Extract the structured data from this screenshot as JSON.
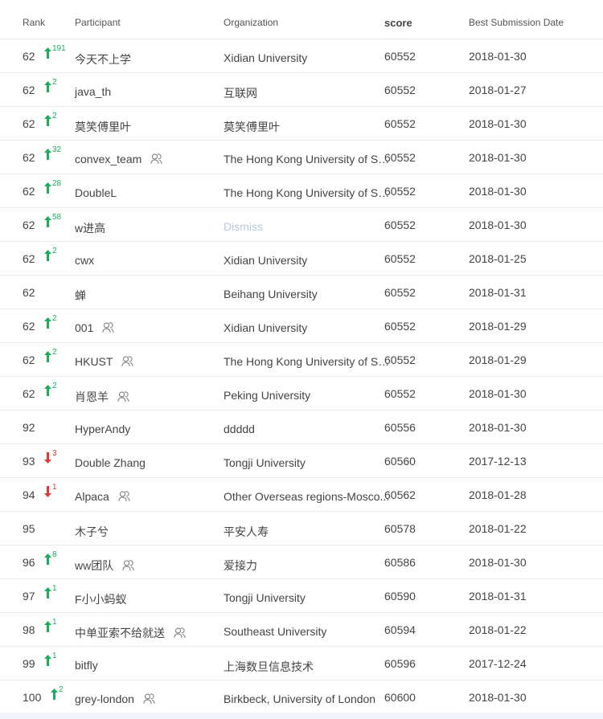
{
  "header": {
    "rank": "Rank",
    "participant": "Participant",
    "organization": "Organization",
    "score": "score",
    "date": "Best Submission Date"
  },
  "colors": {
    "up": "#1aad5c",
    "down": "#e53935",
    "dismiss": "#b9c8dc"
  },
  "rows": [
    {
      "rank": "62",
      "change": "191",
      "dir": "up",
      "participant": "今天不上学",
      "team": false,
      "org": "Xidian University",
      "score": "60552",
      "date": "2018-01-30"
    },
    {
      "rank": "62",
      "change": "2",
      "dir": "up",
      "participant": "java_th",
      "team": false,
      "org": "互联网",
      "score": "60552",
      "date": "2018-01-27"
    },
    {
      "rank": "62",
      "change": "2",
      "dir": "up",
      "participant": "莫笑傅里叶",
      "team": false,
      "org": "莫笑傅里叶",
      "score": "60552",
      "date": "2018-01-30"
    },
    {
      "rank": "62",
      "change": "32",
      "dir": "up",
      "participant": "convex_team",
      "team": true,
      "org": "The Hong Kong University of Sc...",
      "score": "60552",
      "date": "2018-01-30"
    },
    {
      "rank": "62",
      "change": "28",
      "dir": "up",
      "participant": "DoubleL",
      "team": false,
      "org": "The Hong Kong University of Sc...",
      "score": "60552",
      "date": "2018-01-30"
    },
    {
      "rank": "62",
      "change": "58",
      "dir": "up",
      "participant": "w进高",
      "team": false,
      "org": "Dismiss",
      "dismiss": true,
      "score": "60552",
      "date": "2018-01-30"
    },
    {
      "rank": "62",
      "change": "2",
      "dir": "up",
      "participant": "cwx",
      "team": false,
      "org": "Xidian University",
      "score": "60552",
      "date": "2018-01-25"
    },
    {
      "rank": "62",
      "change": "",
      "dir": "",
      "participant": "蝉",
      "team": false,
      "org": "Beihang University",
      "score": "60552",
      "date": "2018-01-31"
    },
    {
      "rank": "62",
      "change": "2",
      "dir": "up",
      "participant": "001",
      "team": true,
      "org": "Xidian University",
      "score": "60552",
      "date": "2018-01-29"
    },
    {
      "rank": "62",
      "change": "2",
      "dir": "up",
      "participant": "HKUST",
      "team": true,
      "org": "The Hong Kong University of Sc...",
      "score": "60552",
      "date": "2018-01-29"
    },
    {
      "rank": "62",
      "change": "2",
      "dir": "up",
      "participant": "肖恩羊",
      "team": true,
      "org": "Peking University",
      "score": "60552",
      "date": "2018-01-30"
    },
    {
      "rank": "92",
      "change": "",
      "dir": "",
      "participant": "HyperAndy",
      "team": false,
      "org": "ddddd",
      "score": "60556",
      "date": "2018-01-30"
    },
    {
      "rank": "93",
      "change": "3",
      "dir": "down",
      "participant": "Double Zhang",
      "team": false,
      "org": "Tongji University",
      "score": "60560",
      "date": "2017-12-13"
    },
    {
      "rank": "94",
      "change": "1",
      "dir": "down",
      "participant": "Alpaca",
      "team": true,
      "org": "Other Overseas regions-Mosco...",
      "score": "60562",
      "date": "2018-01-28"
    },
    {
      "rank": "95",
      "change": "",
      "dir": "",
      "participant": "木子兮",
      "team": false,
      "org": "平安人寿",
      "score": "60578",
      "date": "2018-01-22"
    },
    {
      "rank": "96",
      "change": "8",
      "dir": "up",
      "participant": "ww团队",
      "team": true,
      "org": "爱接力",
      "score": "60586",
      "date": "2018-01-30"
    },
    {
      "rank": "97",
      "change": "1",
      "dir": "up",
      "participant": "F小小蚂蚁",
      "team": false,
      "org": "Tongji University",
      "score": "60590",
      "date": "2018-01-31"
    },
    {
      "rank": "98",
      "change": "1",
      "dir": "up",
      "participant": "中单亚索不给就送",
      "team": true,
      "org": "Southeast University",
      "score": "60594",
      "date": "2018-01-22"
    },
    {
      "rank": "99",
      "change": "1",
      "dir": "up",
      "participant": "bitfly",
      "team": false,
      "org": "上海数旦信息技术",
      "score": "60596",
      "date": "2017-12-24"
    },
    {
      "rank": "100",
      "change": "2",
      "dir": "up",
      "participant": "grey-london",
      "team": true,
      "org": "Birkbeck, University of London",
      "score": "60600",
      "date": "2018-01-30"
    }
  ]
}
